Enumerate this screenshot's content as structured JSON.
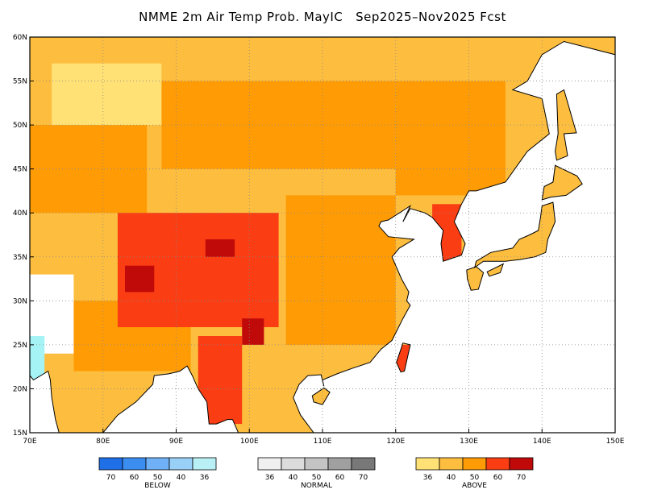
{
  "title": "NMME 2m Air Temp Prob. MayIC   Sep2025–Nov2025 Fcst",
  "map": {
    "lon_range": [
      70,
      150
    ],
    "lat_range": [
      15,
      60
    ],
    "lon_labels": [
      "70E",
      "80E",
      "90E",
      "100E",
      "110E",
      "120E",
      "130E",
      "140E",
      "150E"
    ],
    "lat_labels": [
      "15N",
      "20N",
      "25N",
      "30N",
      "35N",
      "40N",
      "45N",
      "50N",
      "55N",
      "60N"
    ],
    "land_color": "#fdbe3f",
    "ocean_color": "#ffffff",
    "hot_regions": [
      {
        "name": "tibet-core",
        "lon": [
          82,
          104
        ],
        "lat": [
          27,
          40
        ],
        "color": "#fb3d13"
      },
      {
        "name": "tibet-hot",
        "lon": [
          83,
          87
        ],
        "lat": [
          31,
          34
        ],
        "color": "#c00a0a"
      },
      {
        "name": "qinghai-hot",
        "lon": [
          94,
          98
        ],
        "lat": [
          35,
          37
        ],
        "color": "#c00a0a"
      },
      {
        "name": "sichuan-hot",
        "lon": [
          99,
          102
        ],
        "lat": [
          25,
          28
        ],
        "color": "#c00a0a"
      },
      {
        "name": "myanmar",
        "lon": [
          93,
          99
        ],
        "lat": [
          16,
          26
        ],
        "color": "#fb3d13"
      },
      {
        "name": "korea",
        "lon": [
          125,
          129
        ],
        "lat": [
          34,
          41
        ],
        "color": "#fb3d13"
      },
      {
        "name": "taiwan",
        "lon": [
          120,
          122
        ],
        "lat": [
          22,
          25
        ],
        "color": "#fb3d13"
      }
    ],
    "warm_regions": [
      {
        "name": "mongolia-north",
        "lon": [
          88,
          120
        ],
        "lat": [
          45,
          55
        ],
        "color": "#ff9b04"
      },
      {
        "name": "china-east",
        "lon": [
          105,
          120
        ],
        "lat": [
          25,
          42
        ],
        "color": "#ff9b04"
      },
      {
        "name": "kazakh",
        "lon": [
          70,
          86
        ],
        "lat": [
          40,
          50
        ],
        "color": "#ff9b04"
      },
      {
        "name": "manchuria",
        "lon": [
          120,
          135
        ],
        "lat": [
          42,
          55
        ],
        "color": "#ff9b04"
      },
      {
        "name": "india-north",
        "lon": [
          76,
          92
        ],
        "lat": [
          22,
          30
        ],
        "color": "#ff9b04"
      }
    ],
    "cool_regions": [
      {
        "name": "india-south-west",
        "lon": [
          70,
          76
        ],
        "lat": [
          24,
          33
        ],
        "color": "#ffffff"
      },
      {
        "name": "siberia-white",
        "lon": [
          73,
          88
        ],
        "lat": [
          50,
          57
        ],
        "color": "#ffe176"
      },
      {
        "name": "gujarat",
        "lon": [
          70,
          72
        ],
        "lat": [
          21,
          26
        ],
        "color": "#a5f3f5"
      }
    ]
  },
  "legend": {
    "below": {
      "label": "BELOW",
      "ticks": [
        "70",
        "60",
        "50",
        "40",
        "36"
      ],
      "colors": [
        "#1f6fe6",
        "#3b8df0",
        "#70b0f6",
        "#99d0f8",
        "#b8f0f5"
      ]
    },
    "normal": {
      "label": "NORMAL",
      "ticks": [
        "36",
        "40",
        "50",
        "60",
        "70"
      ],
      "colors": [
        "#f0f0f0",
        "#dcdcdc",
        "#c4c4c4",
        "#a0a0a0",
        "#787878"
      ]
    },
    "above": {
      "label": "ABOVE",
      "ticks": [
        "36",
        "40",
        "50",
        "60",
        "70"
      ],
      "colors": [
        "#ffe176",
        "#fdbe3f",
        "#ff9b04",
        "#fb3d13",
        "#c00a0a"
      ]
    }
  }
}
